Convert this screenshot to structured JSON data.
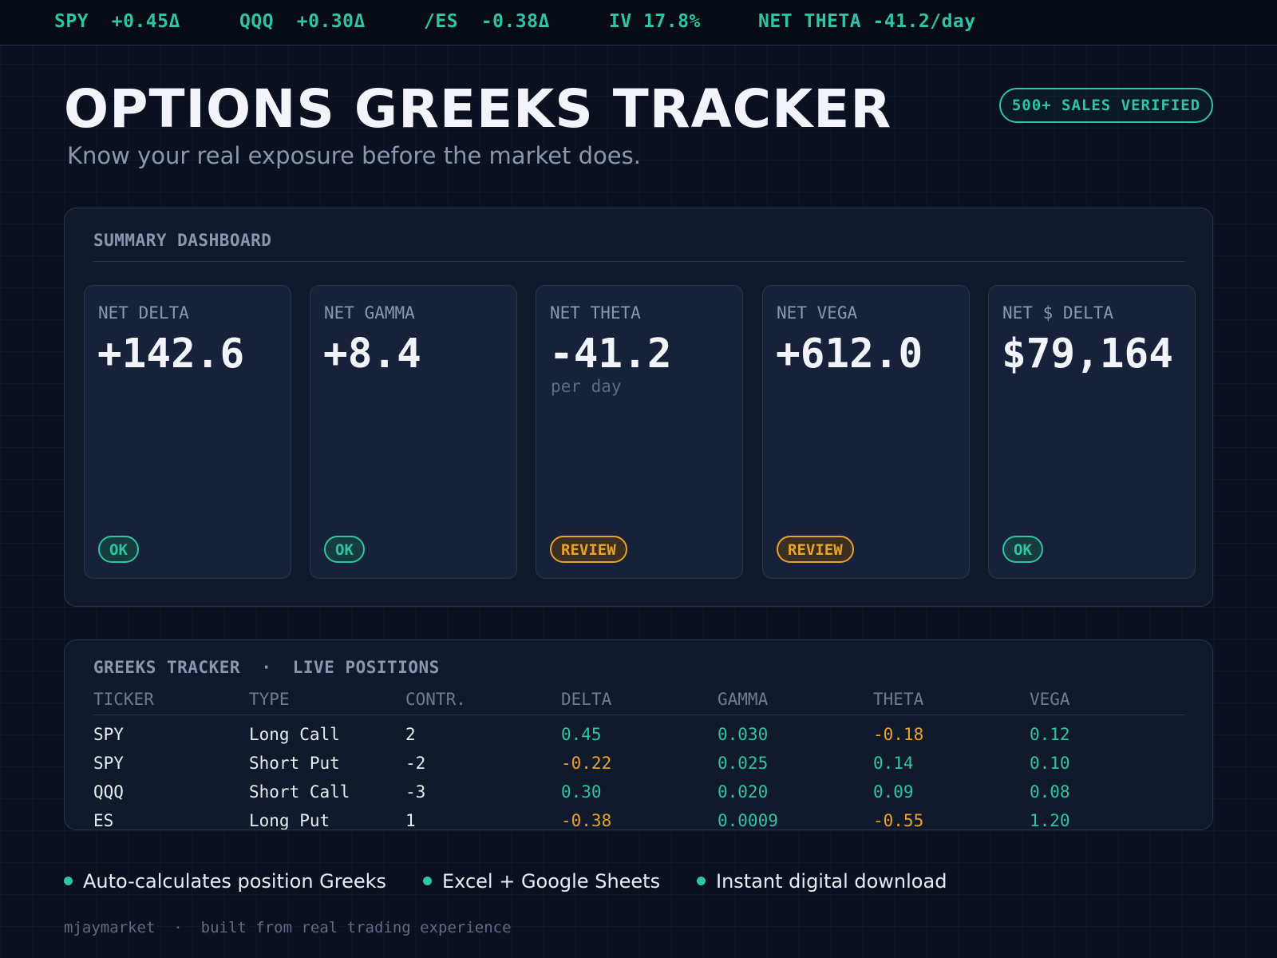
{
  "ticker": {
    "items": [
      {
        "symbol": "SPY",
        "value": "+0.45Δ"
      },
      {
        "symbol": "QQQ",
        "value": "+0.30Δ"
      },
      {
        "symbol": "/ES",
        "value": "-0.38Δ"
      },
      {
        "symbol": "IV",
        "value": "17.8%"
      },
      {
        "symbol": "NET THETA",
        "value": "-41.2/day"
      }
    ]
  },
  "header": {
    "title": "OPTIONS GREEKS TRACKER",
    "subtitle": "Know your real exposure before the market does.",
    "badge": "500+ SALES VERIFIED"
  },
  "summary": {
    "heading": "SUMMARY DASHBOARD",
    "cards": [
      {
        "label": "NET DELTA",
        "value": "+142.6",
        "sub": "",
        "status": "OK"
      },
      {
        "label": "NET GAMMA",
        "value": "+8.4",
        "sub": "",
        "status": "OK"
      },
      {
        "label": "NET THETA",
        "value": "-41.2",
        "sub": "per day",
        "status": "REVIEW"
      },
      {
        "label": "NET VEGA",
        "value": "+612.0",
        "sub": "",
        "status": "REVIEW"
      },
      {
        "label": "NET $ DELTA",
        "value": "$79,164",
        "sub": "",
        "status": "OK"
      }
    ]
  },
  "tracker": {
    "heading": "GREEKS TRACKER",
    "separator": "·",
    "subheading": "LIVE POSITIONS",
    "columns": [
      "TICKER",
      "TYPE",
      "CONTR.",
      "DELTA",
      "GAMMA",
      "THETA",
      "VEGA"
    ],
    "rows": [
      [
        "SPY",
        "Long Call",
        "2",
        "0.45",
        "0.030",
        "-0.18",
        "0.12"
      ],
      [
        "SPY",
        "Short Put",
        "-2",
        "-0.22",
        "0.025",
        "0.14",
        "0.10"
      ],
      [
        "QQQ",
        "Short Call",
        "-3",
        "0.30",
        "0.020",
        "0.09",
        "0.08"
      ],
      [
        "ES",
        "Long Put",
        "1",
        "-0.38",
        "0.0009",
        "-0.55",
        "1.20"
      ]
    ]
  },
  "features": [
    "Auto-calculates position Greeks",
    "Excel + Google Sheets",
    "Instant digital download"
  ],
  "footer": {
    "brand": "mjaymarket",
    "separator": "·",
    "tagline": "built from real trading experience"
  },
  "colors": {
    "accent": "#2ec4a6",
    "warning": "#e8a42a",
    "background": "#0a1020",
    "panel": "#111a2c"
  }
}
